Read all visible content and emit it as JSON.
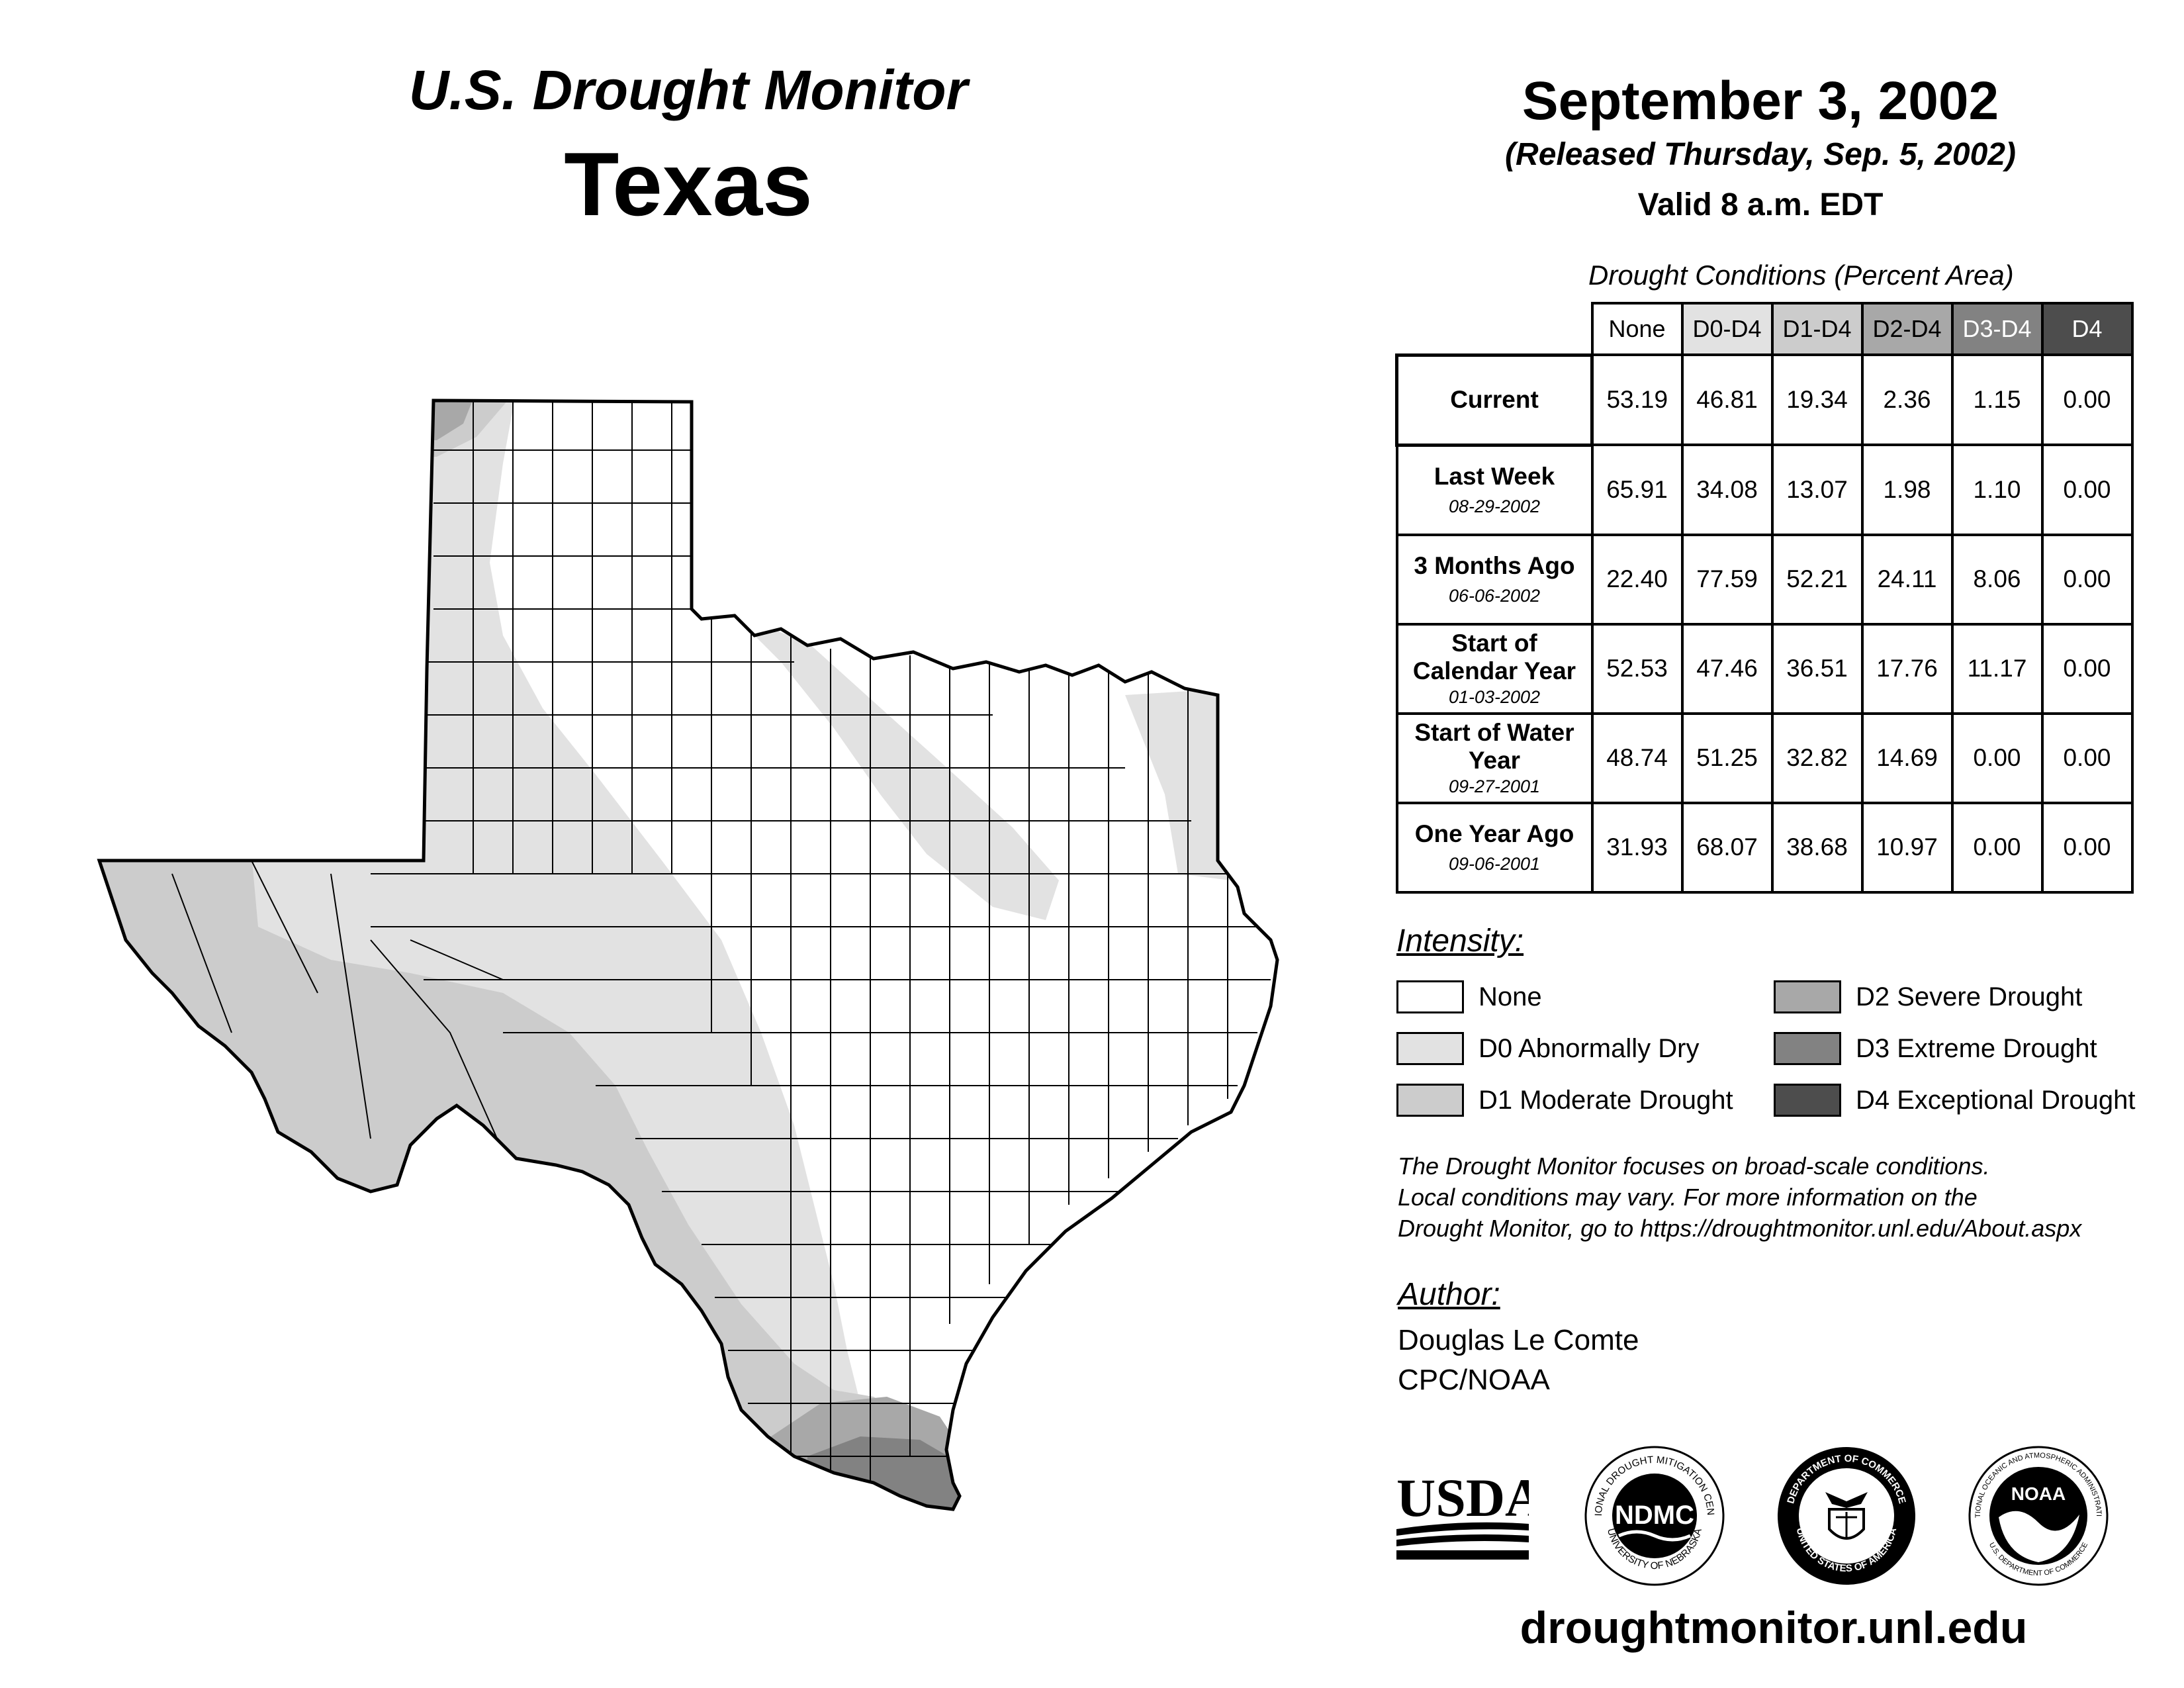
{
  "header": {
    "program": "U.S. Drought Monitor",
    "state": "Texas",
    "date": "September 3, 2002",
    "released": "(Released Thursday, Sep. 5, 2002)",
    "valid": "Valid 8 a.m. EDT"
  },
  "table": {
    "title": "Drought Conditions (Percent Area)",
    "columns": [
      "None",
      "D0-D4",
      "D1-D4",
      "D2-D4",
      "D3-D4",
      "D4"
    ],
    "column_colors": [
      "#ffffff",
      "#e2e2e2",
      "#cccccc",
      "#a8a8a8",
      "#828282",
      "#4d4d4d"
    ],
    "rows": [
      {
        "label": "Current",
        "date": "",
        "values": [
          "53.19",
          "46.81",
          "19.34",
          "2.36",
          "1.15",
          "0.00"
        ]
      },
      {
        "label": "Last Week",
        "date": "08-29-2002",
        "values": [
          "65.91",
          "34.08",
          "13.07",
          "1.98",
          "1.10",
          "0.00"
        ]
      },
      {
        "label": "3 Months Ago",
        "date": "06-06-2002",
        "values": [
          "22.40",
          "77.59",
          "52.21",
          "24.11",
          "8.06",
          "0.00"
        ]
      },
      {
        "label": "Start of Calendar Year",
        "date": "01-03-2002",
        "values": [
          "52.53",
          "47.46",
          "36.51",
          "17.76",
          "11.17",
          "0.00"
        ]
      },
      {
        "label": "Start of Water Year",
        "date": "09-27-2001",
        "values": [
          "48.74",
          "51.25",
          "32.82",
          "14.69",
          "0.00",
          "0.00"
        ]
      },
      {
        "label": "One Year Ago",
        "date": "09-06-2001",
        "values": [
          "31.93",
          "68.07",
          "38.68",
          "10.97",
          "0.00",
          "0.00"
        ]
      }
    ]
  },
  "legend": {
    "title": "Intensity:",
    "items": [
      {
        "label": "None",
        "color": "#ffffff"
      },
      {
        "label": "D0 Abnormally Dry",
        "color": "#e2e2e2"
      },
      {
        "label": "D1 Moderate Drought",
        "color": "#cccccc"
      },
      {
        "label": "D2 Severe Drought",
        "color": "#a8a8a8"
      },
      {
        "label": "D3 Extreme Drought",
        "color": "#828282"
      },
      {
        "label": "D4 Exceptional Drought",
        "color": "#4d4d4d"
      }
    ]
  },
  "disclaimer": {
    "line1": "The Drought Monitor focuses on broad-scale conditions.",
    "line2": "Local conditions may vary. For more information on the",
    "line3": "Drought Monitor, go to https://droughtmonitor.unl.edu/About.aspx"
  },
  "author": {
    "title": "Author:",
    "name": "Douglas Le Comte",
    "org": "CPC/NOAA"
  },
  "logos": {
    "usda": "USDA",
    "ndmc": "NDMC",
    "ndmc_ring_top": "NATIONAL DROUGHT MITIGATION CENTER",
    "ndmc_ring_bottom": "UNIVERSITY OF NEBRASKA",
    "commerce_ring_top": "DEPARTMENT OF COMMERCE",
    "commerce_ring_bottom": "UNITED STATES OF AMERICA",
    "noaa": "NOAA",
    "noaa_ring_top": "NATIONAL OCEANIC AND ATMOSPHERIC ADMINISTRATION",
    "noaa_ring_bottom": "U.S. DEPARTMENT OF COMMERCE"
  },
  "footer": {
    "url": "droughtmonitor.unl.edu"
  },
  "map": {
    "colors": {
      "none": "#ffffff",
      "d0": "#e2e2e2",
      "d1": "#cccccc",
      "d2": "#a8a8a8",
      "d3": "#828282",
      "outline": "#000000"
    }
  }
}
